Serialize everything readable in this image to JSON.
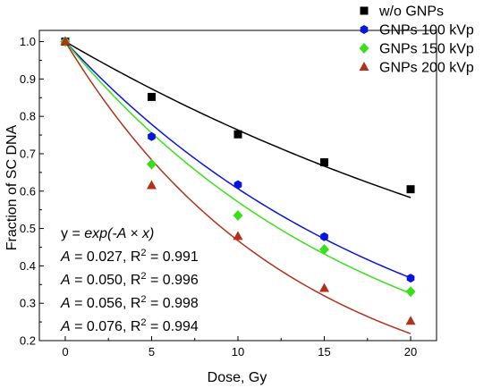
{
  "chart_data": {
    "type": "scatter",
    "title": "",
    "xlabel": "Dose, Gy",
    "ylabel": "Fraction of SC DNA",
    "xlim": [
      -1.5,
      21.5
    ],
    "ylim": [
      0.2,
      1.03
    ],
    "x_ticks": [
      0,
      5,
      10,
      15,
      20
    ],
    "y_ticks": [
      0.2,
      0.3,
      0.4,
      0.5,
      0.6,
      0.7,
      0.8,
      0.9,
      1.0
    ],
    "x_tick_labels": [
      "0",
      "5",
      "10",
      "15",
      "20"
    ],
    "y_tick_labels": [
      "0.2",
      "0.3",
      "0.4",
      "0.5",
      "0.6",
      "0.7",
      "0.8",
      "0.9",
      "1.0"
    ],
    "x": [
      0,
      5,
      10,
      15,
      20
    ],
    "grid": false,
    "legend_position": "top-right",
    "series": [
      {
        "name": "w/o GNPs",
        "marker": "square",
        "color": "#000000",
        "values": [
          1.0,
          0.852,
          0.752,
          0.677,
          0.605
        ],
        "fit_A": 0.027
      },
      {
        "name": "GNPs 100 kVp",
        "marker": "hexagon",
        "color": "#0a14e0",
        "values": [
          1.0,
          0.746,
          0.617,
          0.478,
          0.367
        ],
        "fit_A": 0.05
      },
      {
        "name": "GNPs 150 kVp",
        "marker": "diamond",
        "color": "#39e01a",
        "values": [
          1.0,
          0.672,
          0.535,
          0.444,
          0.331
        ],
        "fit_A": 0.056
      },
      {
        "name": "GNPs 200 kVp",
        "marker": "triangle",
        "color": "#b3301a",
        "values": [
          1.0,
          0.615,
          0.479,
          0.34,
          0.252
        ],
        "fit_A": 0.076
      }
    ],
    "annotations": {
      "equation": {
        "pre": "y = ",
        "func": "exp(-A × x)"
      },
      "fits": [
        {
          "A_label": "A",
          "A_value": " = 0.027, R",
          "sup": "2",
          "R2_value": " = 0.991",
          "color": "#000000"
        },
        {
          "A_label": "A",
          "A_value": " = 0.050, R",
          "sup": "2",
          "R2_value": " = 0.996",
          "color": "#0a14e0"
        },
        {
          "A_label": "A",
          "A_value": " = 0.056, R",
          "sup": "2",
          "R2_value": " = 0.998",
          "color": "#39e01a"
        },
        {
          "A_label": "A",
          "A_value": " = 0.076, R",
          "sup": "2",
          "R2_value": " = 0.994",
          "color": "#b3301a"
        }
      ]
    }
  }
}
